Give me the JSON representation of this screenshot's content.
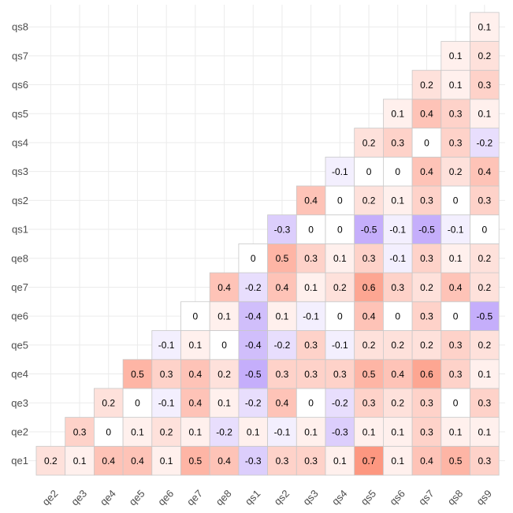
{
  "chart_data": {
    "type": "heatmap",
    "title": "",
    "xlabel": "",
    "ylabel": "",
    "x_categories": [
      "qe2",
      "qe3",
      "qe4",
      "qe5",
      "qe6",
      "qe7",
      "qe8",
      "qs1",
      "qs2",
      "qs3",
      "qs4",
      "qs5",
      "qs6",
      "qs7",
      "qs8",
      "qs9"
    ],
    "y_categories": [
      "qe1",
      "qe2",
      "qe3",
      "qe4",
      "qe5",
      "qe6",
      "qe7",
      "qe8",
      "qs1",
      "qs2",
      "qs3",
      "qs4",
      "qs5",
      "qs6",
      "qs7",
      "qs8"
    ],
    "value_range": [
      -1,
      1
    ],
    "colors": {
      "negative": "#8a5cf6",
      "zero": "#ffffff",
      "positive": "#fc6a4a",
      "grid": "#ebebeb",
      "cell_border": "#c8c8c8"
    },
    "values": [
      [
        0.2,
        0.1,
        0.4,
        0.4,
        0.1,
        0.5,
        0.4,
        -0.3,
        0.3,
        0.3,
        0.1,
        0.7,
        0.1,
        0.4,
        0.5,
        0.3
      ],
      [
        null,
        0.3,
        0,
        0.1,
        0.2,
        0.1,
        -0.2,
        0.1,
        -0.1,
        0.1,
        -0.3,
        0.1,
        0.1,
        0.3,
        0.1,
        0.1
      ],
      [
        null,
        null,
        0.2,
        0,
        -0.1,
        0.4,
        0.1,
        -0.2,
        0.4,
        0,
        -0.2,
        0.3,
        0.2,
        0.3,
        0,
        0.3
      ],
      [
        null,
        null,
        null,
        0.5,
        0.3,
        0.4,
        0.2,
        -0.5,
        0.3,
        0.3,
        0.3,
        0.5,
        0.4,
        0.6,
        0.3,
        0.1
      ],
      [
        null,
        null,
        null,
        null,
        -0.1,
        0.1,
        0,
        -0.4,
        -0.2,
        0.3,
        -0.1,
        0.2,
        0.2,
        0.2,
        0.3,
        0.2
      ],
      [
        null,
        null,
        null,
        null,
        null,
        0,
        0.1,
        -0.4,
        0.1,
        -0.1,
        0,
        0.4,
        0,
        0.3,
        0,
        -0.5
      ],
      [
        null,
        null,
        null,
        null,
        null,
        null,
        0.4,
        -0.2,
        0.4,
        0.1,
        0.2,
        0.6,
        0.3,
        0.2,
        0.4,
        0.2
      ],
      [
        null,
        null,
        null,
        null,
        null,
        null,
        null,
        0,
        0.5,
        0.3,
        0.1,
        0.3,
        -0.1,
        0.3,
        0.1,
        0.2
      ],
      [
        null,
        null,
        null,
        null,
        null,
        null,
        null,
        null,
        -0.3,
        0,
        0,
        -0.5,
        -0.1,
        -0.5,
        -0.1,
        0
      ],
      [
        null,
        null,
        null,
        null,
        null,
        null,
        null,
        null,
        null,
        0.4,
        0,
        0.2,
        0.1,
        0.3,
        0,
        0.3
      ],
      [
        null,
        null,
        null,
        null,
        null,
        null,
        null,
        null,
        null,
        null,
        -0.1,
        0,
        0,
        0.4,
        0.2,
        0.4
      ],
      [
        null,
        null,
        null,
        null,
        null,
        null,
        null,
        null,
        null,
        null,
        null,
        0.2,
        0.3,
        0,
        0.3,
        -0.2
      ],
      [
        null,
        null,
        null,
        null,
        null,
        null,
        null,
        null,
        null,
        null,
        null,
        null,
        0.1,
        0.4,
        0.3,
        0.1
      ],
      [
        null,
        null,
        null,
        null,
        null,
        null,
        null,
        null,
        null,
        null,
        null,
        null,
        null,
        0.2,
        0.1,
        0.3
      ],
      [
        null,
        null,
        null,
        null,
        null,
        null,
        null,
        null,
        null,
        null,
        null,
        null,
        null,
        null,
        0.1,
        0.2
      ],
      [
        null,
        null,
        null,
        null,
        null,
        null,
        null,
        null,
        null,
        null,
        null,
        null,
        null,
        null,
        null,
        0.1
      ]
    ]
  }
}
